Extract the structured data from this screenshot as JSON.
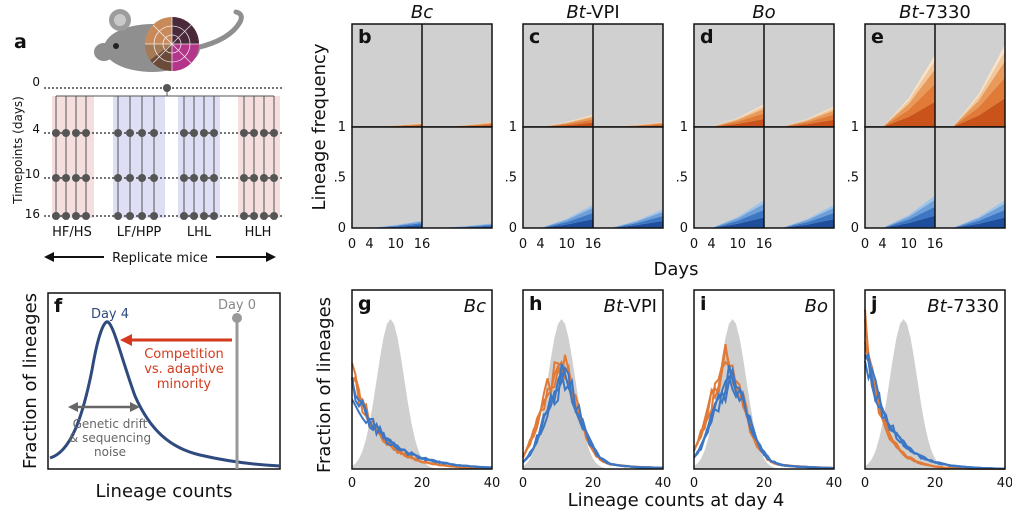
{
  "colors": {
    "hf": "#f4dede",
    "lf": "#dedff4",
    "lineage_grey": "#d0d0d0",
    "blue_dark": "#1f4e9c",
    "blue_mid": "#3d77c4",
    "blue_light": "#9ec3ea",
    "orange_dark": "#c9531a",
    "orange_mid": "#e07a36",
    "orange_light": "#f1c79a",
    "day4_curve": "#2f4a7e",
    "red_text": "#d33a1e",
    "grey_text": "#777777"
  },
  "panel_a": {
    "label": "a",
    "ylabel": "Timepoints (days)",
    "timepoints": [
      "0",
      "4",
      "10",
      "16"
    ],
    "groups": [
      "HF/HS",
      "LF/HPP",
      "LHL",
      "HLH"
    ],
    "replicate_label": "Replicate mice"
  },
  "panel_f": {
    "label": "f",
    "ylabel": "Fraction of lineages",
    "xlabel": "Lineage counts",
    "day4": "Day 4",
    "day0": "Day 0",
    "competition": [
      "Competition",
      "vs. adaptive",
      "minority"
    ],
    "drift": [
      "Genetic drift",
      "& sequencing",
      "noise"
    ]
  },
  "top_panels": {
    "ylabel": "Lineage frequency",
    "xlabel": "Days",
    "xticks": [
      "0",
      "4",
      "10",
      "16"
    ],
    "yticks_upper": [
      "1"
    ],
    "yticks_lower": [
      "1",
      ".5",
      "0"
    ],
    "panels": [
      {
        "label": "b",
        "strain_italic": "Bc",
        "strain_suffix": ""
      },
      {
        "label": "c",
        "strain_italic": "Bt",
        "strain_suffix": "-VPI"
      },
      {
        "label": "d",
        "strain_italic": "Bo",
        "strain_suffix": ""
      },
      {
        "label": "e",
        "strain_italic": "Bt",
        "strain_suffix": "-7330"
      }
    ]
  },
  "bottom_panels": {
    "ylabel": "Fraction of lineages",
    "xlabel": "Lineage counts at day 4",
    "xticks": [
      "0",
      "20",
      "40"
    ],
    "panels": [
      {
        "label": "g",
        "strain_italic": "Bc",
        "strain_suffix": ""
      },
      {
        "label": "h",
        "strain_italic": "Bt",
        "strain_suffix": "-VPI"
      },
      {
        "label": "i",
        "strain_italic": "Bo",
        "strain_suffix": ""
      },
      {
        "label": "j",
        "strain_italic": "Bt",
        "strain_suffix": "-7330"
      }
    ]
  }
}
